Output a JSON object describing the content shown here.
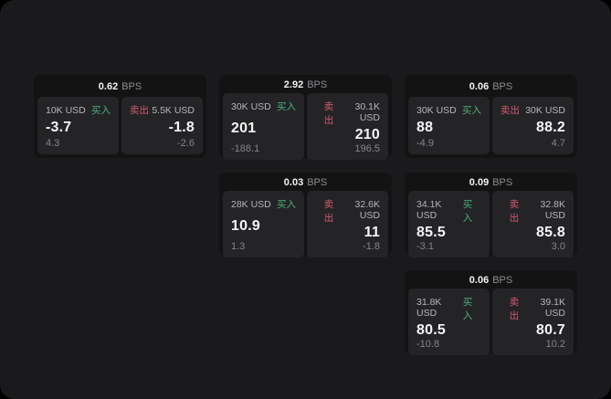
{
  "labels": {
    "bps": "BPS",
    "buy": "买入",
    "sell": "卖出"
  },
  "colors": {
    "buy": "#4caf78",
    "sell": "#d15a6e",
    "window_bg": "#1a1a1c",
    "card_bg": "#131314",
    "panel_bg": "#242427"
  },
  "cards": [
    {
      "col": 1,
      "row": 1,
      "bps": "0.62",
      "buy": {
        "size": "10K USD",
        "price": "-3.7",
        "delta": "4.3"
      },
      "sell": {
        "size": "5.5K USD",
        "price": "-1.8",
        "delta": "-2.6"
      }
    },
    {
      "col": 2,
      "row": 1,
      "bps": "2.92",
      "buy": {
        "size": "30K USD",
        "price": "201",
        "delta": "-188.1"
      },
      "sell": {
        "size": "30.1K USD",
        "price": "210",
        "delta": "196.5"
      }
    },
    {
      "col": 3,
      "row": 1,
      "bps": "0.06",
      "buy": {
        "size": "30K USD",
        "price": "88",
        "delta": "-4.9"
      },
      "sell": {
        "size": "30K USD",
        "price": "88.2",
        "delta": "4.7"
      }
    },
    {
      "col": 2,
      "row": 2,
      "bps": "0.03",
      "buy": {
        "size": "28K USD",
        "price": "10.9",
        "delta": "1.3"
      },
      "sell": {
        "size": "32.6K USD",
        "price": "11",
        "delta": "-1.8"
      }
    },
    {
      "col": 3,
      "row": 2,
      "bps": "0.09",
      "buy": {
        "size": "34.1K USD",
        "price": "85.5",
        "delta": "-3.1"
      },
      "sell": {
        "size": "32.8K USD",
        "price": "85.8",
        "delta": "3.0"
      }
    },
    {
      "col": 3,
      "row": 3,
      "bps": "0.06",
      "buy": {
        "size": "31.8K USD",
        "price": "80.5",
        "delta": "-10.8"
      },
      "sell": {
        "size": "39.1K USD",
        "price": "80.7",
        "delta": "10.2"
      }
    }
  ]
}
